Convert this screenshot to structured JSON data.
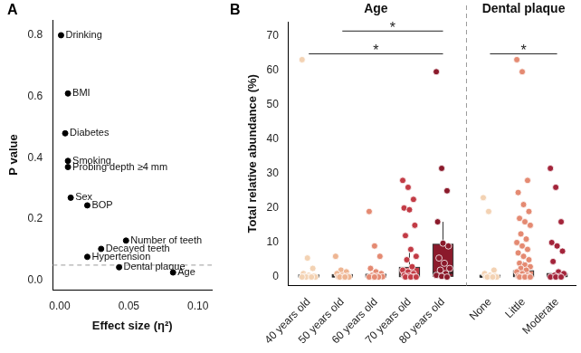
{
  "chart_data": [
    {
      "type": "scatter",
      "title": "A",
      "x_label": "Effect size (η²)",
      "y_label": "P value",
      "color": "#000000",
      "grid": false,
      "points": [
        {
          "label": "Drinking",
          "x": 0.001,
          "y": 0.8
        },
        {
          "label": "BMI",
          "x": 0.006,
          "y": 0.61
        },
        {
          "label": "Diabetes",
          "x": 0.004,
          "y": 0.48
        },
        {
          "label": "Smoking",
          "x": 0.006,
          "y": 0.39
        },
        {
          "label": "Probing depth ≥4 mm",
          "x": 0.006,
          "y": 0.37
        },
        {
          "label": "Sex",
          "x": 0.008,
          "y": 0.27
        },
        {
          "label": "BOP",
          "x": 0.02,
          "y": 0.245
        },
        {
          "label": "Number of teeth",
          "x": 0.048,
          "y": 0.13
        },
        {
          "label": "Decayed teeth",
          "x": 0.03,
          "y": 0.103
        },
        {
          "label": "Hypertension",
          "x": 0.02,
          "y": 0.077
        },
        {
          "label": "Dental plaque",
          "x": 0.043,
          "y": 0.043
        },
        {
          "label": "Age",
          "x": 0.082,
          "y": 0.026
        }
      ],
      "threshold": 0.05,
      "xlim": [
        -0.005,
        0.11
      ],
      "xticks": [
        {
          "value": 0,
          "label": "0.00"
        },
        {
          "value": 0.05,
          "label": "0.05"
        },
        {
          "value": 0.1,
          "label": "0.10"
        }
      ],
      "ylim": [
        -0.03,
        0.85
      ],
      "yticks": [
        {
          "value": 0,
          "label": "0.0"
        },
        {
          "value": 0.2,
          "label": "0.2"
        },
        {
          "value": 0.4,
          "label": "0.4"
        },
        {
          "value": 0.6,
          "label": "0.6"
        },
        {
          "value": 0.8,
          "label": "0.8"
        }
      ]
    },
    {
      "type": "box",
      "title": "B",
      "y_label": "Total relative abundance (%)",
      "grid": false,
      "ylim": [
        -2.5,
        74
      ],
      "yticks": [
        0,
        10,
        20,
        30,
        40,
        50,
        60,
        70
      ],
      "groups": [
        {
          "title": "Age",
          "categories": [
            {
              "name": "40 years old",
              "color": "#f3d2b3",
              "q1": 0,
              "median": 0.2,
              "q3": 0.6,
              "whisker_low": 0,
              "whisker_high": 1.2,
              "points": [
                63,
                5.5,
                2.5,
                1,
                0.5,
                0.3,
                0.2,
                0.1,
                0,
                0,
                0,
                0
              ]
            },
            {
              "name": "50 years old",
              "color": "#eeb592",
              "q1": 0,
              "median": 0.2,
              "q3": 0.7,
              "whisker_low": 0,
              "whisker_high": 1.5,
              "points": [
                6,
                2,
                1.5,
                1,
                0.5,
                0.3,
                0.1,
                0,
                0,
                0,
                0
              ]
            },
            {
              "name": "60 years old",
              "color": "#e48a72",
              "q1": 0,
              "median": 0.3,
              "q3": 0.8,
              "whisker_low": 0,
              "whisker_high": 1.8,
              "points": [
                19,
                9,
                6,
                2.5,
                1.5,
                1,
                0.5,
                0.3,
                0.1,
                0,
                0,
                0,
                0
              ]
            },
            {
              "name": "70 years old",
              "color": "#c23b45",
              "q1": 0.1,
              "median": 0.6,
              "q3": 2.8,
              "whisker_low": 0,
              "whisker_high": 7,
              "points": [
                28,
                26,
                22.5,
                20,
                19.5,
                15,
                12,
                8,
                6,
                5,
                3,
                2,
                1.5,
                1,
                0.5,
                0.3,
                0.1,
                0,
                0,
                0
              ]
            },
            {
              "name": "80 years old",
              "color": "#8b1a2b",
              "q1": 0.2,
              "median": 1.2,
              "q3": 9.5,
              "whisker_low": 0,
              "whisker_high": 16,
              "points": [
                59.5,
                31.5,
                25,
                16,
                9.8,
                9,
                5.5,
                4,
                2.5,
                2,
                1,
                0.5,
                0.2,
                0
              ]
            }
          ]
        },
        {
          "title": "Dental plaque",
          "categories": [
            {
              "name": "None",
              "color": "#f3d2b3",
              "q1": 0,
              "median": 0.1,
              "q3": 0.5,
              "whisker_low": 0,
              "whisker_high": 1.1,
              "points": [
                23,
                19,
                2,
                1,
                0.5,
                0.3,
                0.1,
                0,
                0,
                0,
                0
              ]
            },
            {
              "name": "Little",
              "color": "#e48a72",
              "q1": 0.1,
              "median": 0.5,
              "q3": 1.8,
              "whisker_low": 0,
              "whisker_high": 4.5,
              "points": [
                63,
                59.5,
                28,
                24.5,
                21,
                19,
                17,
                16,
                15,
                12.5,
                11,
                10,
                9,
                8,
                7,
                6,
                5,
                4,
                3.5,
                3,
                2.5,
                2,
                1.5,
                1,
                0.5,
                0.3,
                0.1,
                0,
                0,
                0,
                0
              ]
            },
            {
              "name": "Moderate",
              "color": "#a3243a",
              "q1": 0.1,
              "median": 0.4,
              "q3": 1,
              "whisker_low": 0,
              "whisker_high": 2.2,
              "points": [
                31.5,
                26,
                16,
                10,
                9,
                7.5,
                4.5,
                1.5,
                1,
                0.5,
                0.2,
                0,
                0,
                0
              ]
            }
          ]
        }
      ],
      "significance": [
        {
          "from": "50 years old",
          "to": "80 years old",
          "y": 71.3,
          "label": "*"
        },
        {
          "from": "40 years old",
          "to": "80 years old",
          "y": 64.7,
          "label": "*"
        },
        {
          "from": "None",
          "to": "Moderate",
          "y": 64.7,
          "label": "*"
        }
      ]
    }
  ]
}
